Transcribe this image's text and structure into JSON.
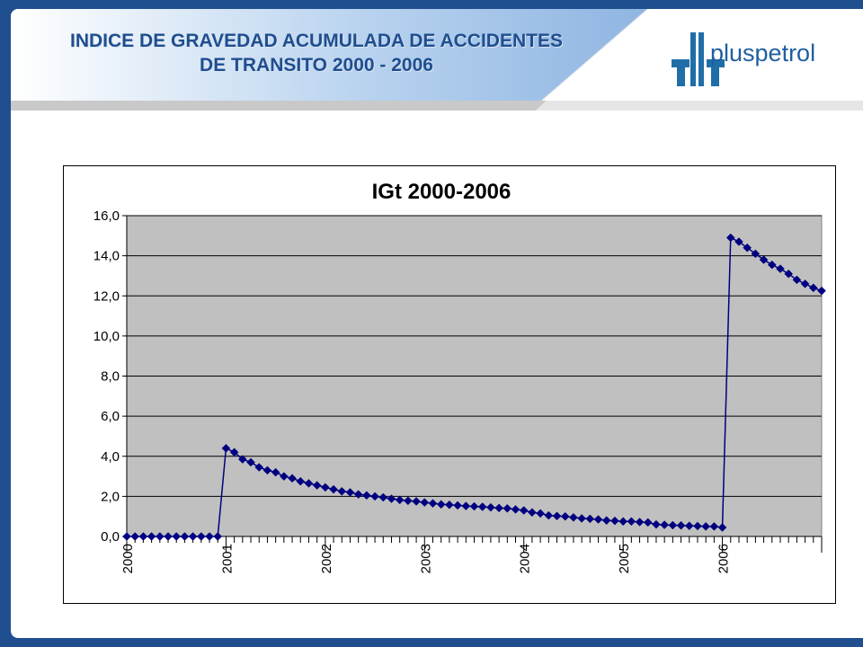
{
  "slide": {
    "title_line1": "INDICE DE GRAVEDAD ACUMULADA DE ACCIDENTES",
    "title_line2": "DE TRANSITO 2000 - 2006",
    "logo_text": "pluspetrol",
    "colors": {
      "frame": "#1f4f8f",
      "title": "#1f4e8f",
      "logo": "#1f6ea8"
    }
  },
  "chart_data": {
    "type": "line",
    "title": "IGt 2000-2006",
    "xlabel": "",
    "ylabel": "",
    "ylim": [
      0,
      16
    ],
    "yticks": [
      "0,0",
      "2,0",
      "4,0",
      "6,0",
      "8,0",
      "10,0",
      "12,0",
      "14,0",
      "16,0"
    ],
    "x_tick_labels": [
      "2000",
      "2001",
      "2002",
      "2003",
      "2004",
      "2005",
      "2006"
    ],
    "months_per_year": 12,
    "grid": true,
    "legend": "none",
    "plot_background": "#c0c0c0",
    "series_color": "#000080",
    "series": [
      {
        "values": [
          0,
          0,
          0,
          0,
          0,
          0,
          0,
          0,
          0,
          0,
          0,
          0,
          4.4,
          4.2,
          3.85,
          3.7,
          3.45,
          3.3,
          3.2,
          3.0,
          2.9,
          2.75,
          2.65,
          2.55,
          2.45,
          2.35,
          2.25,
          2.2,
          2.1,
          2.05,
          2.0,
          1.95,
          1.88,
          1.82,
          1.78,
          1.75,
          1.7,
          1.65,
          1.6,
          1.58,
          1.55,
          1.52,
          1.5,
          1.48,
          1.45,
          1.42,
          1.4,
          1.35,
          1.3,
          1.2,
          1.15,
          1.05,
          1.02,
          1.0,
          0.95,
          0.9,
          0.88,
          0.85,
          0.8,
          0.78,
          0.75,
          0.75,
          0.72,
          0.7,
          0.6,
          0.58,
          0.56,
          0.55,
          0.53,
          0.52,
          0.5,
          0.5,
          0.45,
          14.9,
          14.7,
          14.4,
          14.1,
          13.8,
          13.55,
          13.35,
          13.1,
          12.8,
          12.6,
          12.4,
          12.25
        ]
      }
    ]
  }
}
